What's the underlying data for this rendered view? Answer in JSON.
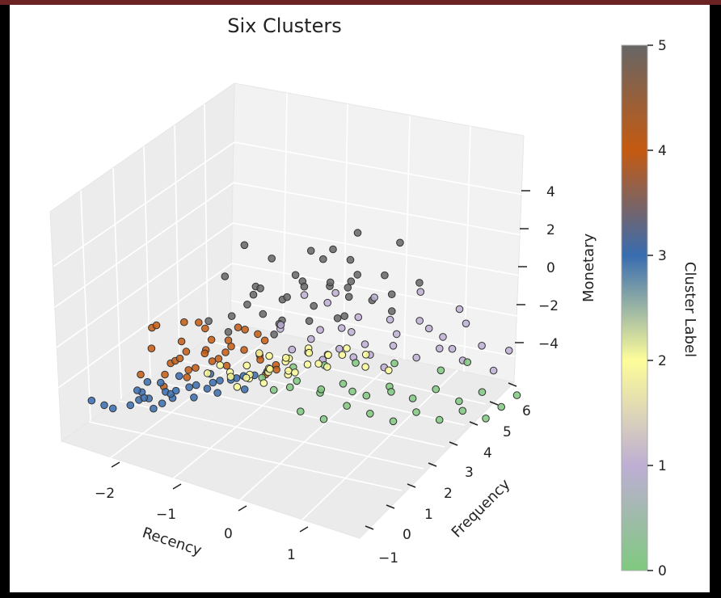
{
  "chart_data": {
    "type": "scatter",
    "projection": "3d",
    "title": "Six Clusters",
    "xlabel": "Recency",
    "ylabel": "Frequency",
    "zlabel": "Monetary",
    "x_ticks": [
      "−2",
      "−1",
      "0",
      "1"
    ],
    "y_ticks": [
      "−1",
      "0",
      "1",
      "2",
      "3",
      "4",
      "5",
      "6"
    ],
    "z_ticks": [
      "−4",
      "−2",
      "0",
      "2",
      "4"
    ],
    "xlim": [
      -2.6,
      1.6
    ],
    "ylim": [
      -1.3,
      6.6
    ],
    "zlim": [
      -5.2,
      5.6
    ],
    "grid": true,
    "colorbar": {
      "label": "Cluster Label",
      "ticks": [
        "0",
        "1",
        "2",
        "3",
        "4",
        "5"
      ],
      "range": [
        0,
        5
      ],
      "colors": [
        "#7fc97f",
        "#beaed4",
        "#fdfd99",
        "#386cb0",
        "#c55a11",
        "#666666"
      ]
    },
    "series": [
      {
        "cluster": 5,
        "color": "#666666",
        "points": [
          [
            -2.2,
            2.2,
            2.0
          ],
          [
            -2.0,
            2.6,
            2.2
          ],
          [
            -1.8,
            2.8,
            2.6
          ],
          [
            -1.6,
            3.0,
            2.0
          ],
          [
            -1.5,
            3.4,
            1.8
          ],
          [
            -1.4,
            2.6,
            2.8
          ],
          [
            -1.3,
            3.2,
            2.4
          ],
          [
            -1.2,
            3.8,
            1.6
          ],
          [
            -1.1,
            2.4,
            2.2
          ],
          [
            -1.0,
            3.0,
            2.0
          ],
          [
            -0.9,
            3.6,
            1.8
          ],
          [
            -0.8,
            3.2,
            2.6
          ],
          [
            -0.7,
            4.2,
            1.4
          ],
          [
            -0.6,
            2.8,
            2.4
          ],
          [
            -0.5,
            3.6,
            2.2
          ],
          [
            -0.4,
            4.0,
            1.8
          ],
          [
            -0.3,
            3.4,
            2.0
          ],
          [
            -0.2,
            4.4,
            1.6
          ],
          [
            -0.1,
            3.0,
            2.6
          ],
          [
            0.0,
            3.8,
            2.2
          ],
          [
            0.1,
            4.6,
            1.6
          ],
          [
            0.2,
            3.4,
            2.4
          ],
          [
            0.3,
            4.2,
            2.0
          ],
          [
            -1.6,
            2.0,
            3.2
          ],
          [
            -1.0,
            2.6,
            3.6
          ],
          [
            -0.4,
            3.0,
            3.4
          ],
          [
            0.2,
            3.6,
            3.8
          ],
          [
            -0.8,
            4.4,
            3.0
          ],
          [
            -1.3,
            2.2,
            4.4
          ],
          [
            -0.6,
            3.8,
            4.2
          ],
          [
            0.5,
            4.4,
            3.4
          ],
          [
            -1.9,
            2.4,
            1.2
          ],
          [
            -1.2,
            3.0,
            1.0
          ],
          [
            -0.5,
            3.8,
            0.8
          ],
          [
            0.1,
            4.6,
            0.8
          ],
          [
            -1.7,
            3.4,
            1.4
          ],
          [
            0.6,
            4.8,
            1.6
          ],
          [
            -0.9,
            2.0,
            1.4
          ],
          [
            -0.2,
            2.6,
            1.2
          ],
          [
            0.4,
            3.2,
            1.0
          ]
        ]
      },
      {
        "cluster": 4,
        "color": "#c55a11",
        "points": [
          [
            -2.5,
            1.0,
            0.4
          ],
          [
            -2.4,
            1.4,
            -0.2
          ],
          [
            -2.3,
            0.8,
            1.0
          ],
          [
            -2.2,
            1.6,
            0.2
          ],
          [
            -2.1,
            1.2,
            -0.6
          ],
          [
            -2.0,
            0.6,
            0.6
          ],
          [
            -1.9,
            1.8,
            0.0
          ],
          [
            -1.8,
            1.0,
            -1.0
          ],
          [
            -1.7,
            1.4,
            0.8
          ],
          [
            -1.6,
            2.0,
            -0.4
          ],
          [
            -1.5,
            0.8,
            0.2
          ],
          [
            -1.4,
            1.6,
            -1.2
          ],
          [
            -1.3,
            2.2,
            0.4
          ],
          [
            -1.2,
            1.2,
            -0.8
          ],
          [
            -1.1,
            1.8,
            0.0
          ],
          [
            -1.0,
            2.4,
            -0.4
          ],
          [
            -0.9,
            1.4,
            -1.4
          ],
          [
            -0.8,
            2.0,
            -0.6
          ],
          [
            -2.4,
            0.6,
            -1.2
          ],
          [
            -2.2,
            1.0,
            -1.8
          ],
          [
            -2.0,
            1.4,
            -1.4
          ],
          [
            -1.8,
            0.6,
            -2.0
          ],
          [
            -1.6,
            1.2,
            -1.6
          ],
          [
            -1.4,
            0.8,
            -2.2
          ],
          [
            -1.2,
            1.6,
            -1.8
          ],
          [
            -1.0,
            1.0,
            -2.2
          ],
          [
            -2.5,
            1.8,
            1.2
          ],
          [
            -2.3,
            2.2,
            0.6
          ],
          [
            -2.1,
            2.0,
            1.4
          ],
          [
            -1.9,
            2.4,
            0.8
          ],
          [
            -1.7,
            2.6,
            0.2
          ],
          [
            -1.5,
            2.8,
            -0.2
          ],
          [
            -1.3,
            2.6,
            -0.8
          ],
          [
            -1.1,
            2.8,
            -1.2
          ],
          [
            -0.9,
            2.6,
            -1.8
          ],
          [
            -0.8,
            2.2,
            -2.4
          ]
        ]
      },
      {
        "cluster": 1,
        "color": "#beaed4",
        "points": [
          [
            -0.8,
            2.6,
            0.0
          ],
          [
            -0.6,
            3.2,
            -0.4
          ],
          [
            -0.4,
            3.8,
            0.2
          ],
          [
            -0.2,
            4.2,
            -0.6
          ],
          [
            0.0,
            3.0,
            0.4
          ],
          [
            0.2,
            3.6,
            -0.2
          ],
          [
            0.4,
            4.4,
            -0.8
          ],
          [
            0.6,
            4.8,
            -0.2
          ],
          [
            0.8,
            5.2,
            -1.0
          ],
          [
            1.0,
            5.6,
            -0.4
          ],
          [
            -0.7,
            2.8,
            -1.0
          ],
          [
            -0.5,
            3.4,
            -1.4
          ],
          [
            -0.3,
            4.0,
            -1.2
          ],
          [
            -0.1,
            4.6,
            -1.6
          ],
          [
            0.1,
            3.2,
            -1.8
          ],
          [
            0.3,
            3.8,
            -2.0
          ],
          [
            0.5,
            4.2,
            -1.6
          ],
          [
            0.7,
            4.6,
            -2.2
          ],
          [
            0.9,
            5.0,
            -1.8
          ],
          [
            1.1,
            5.4,
            -2.4
          ],
          [
            1.2,
            5.8,
            -1.6
          ],
          [
            1.3,
            6.0,
            -2.8
          ],
          [
            -0.2,
            2.6,
            0.8
          ],
          [
            0.2,
            3.0,
            0.6
          ],
          [
            0.6,
            3.6,
            0.2
          ],
          [
            1.0,
            4.4,
            0.4
          ],
          [
            1.4,
            5.0,
            -0.6
          ],
          [
            -0.6,
            2.4,
            -0.2
          ],
          [
            0.0,
            2.8,
            -1.0
          ],
          [
            0.4,
            3.2,
            -1.4
          ],
          [
            0.8,
            3.8,
            -1.0
          ],
          [
            1.2,
            4.4,
            -1.6
          ],
          [
            1.5,
            6.2,
            -2.0
          ],
          [
            1.4,
            4.8,
            -2.6
          ]
        ]
      },
      {
        "cluster": 0,
        "color": "#7fc97f",
        "points": [
          [
            -0.6,
            2.2,
            -3.4
          ],
          [
            -0.4,
            2.6,
            -3.0
          ],
          [
            -0.2,
            3.0,
            -3.6
          ],
          [
            0.0,
            3.4,
            -3.2
          ],
          [
            0.2,
            3.8,
            -3.8
          ],
          [
            0.4,
            4.2,
            -3.4
          ],
          [
            0.6,
            4.6,
            -4.0
          ],
          [
            0.8,
            5.0,
            -3.6
          ],
          [
            1.0,
            5.4,
            -4.2
          ],
          [
            1.2,
            5.8,
            -3.8
          ],
          [
            -0.5,
            2.8,
            -4.2
          ],
          [
            -0.3,
            3.2,
            -4.6
          ],
          [
            -0.1,
            3.6,
            -4.0
          ],
          [
            0.1,
            4.0,
            -4.4
          ],
          [
            0.3,
            4.4,
            -4.8
          ],
          [
            0.5,
            4.8,
            -4.4
          ],
          [
            0.7,
            5.2,
            -4.8
          ],
          [
            0.9,
            5.6,
            -4.4
          ],
          [
            1.1,
            6.0,
            -4.8
          ],
          [
            1.3,
            6.2,
            -4.4
          ],
          [
            -0.7,
            2.0,
            -2.8
          ],
          [
            -0.3,
            2.4,
            -2.6
          ],
          [
            0.1,
            2.8,
            -2.8
          ],
          [
            0.5,
            3.2,
            -3.0
          ],
          [
            0.9,
            3.8,
            -3.2
          ],
          [
            1.3,
            4.6,
            -3.6
          ],
          [
            1.4,
            5.2,
            -3.0
          ],
          [
            1.5,
            6.4,
            -4.0
          ],
          [
            -0.2,
            2.2,
            -3.8
          ],
          [
            0.2,
            2.6,
            -4.2
          ],
          [
            0.6,
            3.0,
            -4.6
          ],
          [
            1.0,
            3.6,
            -4.8
          ]
        ]
      },
      {
        "cluster": 3,
        "color": "#386cb0",
        "points": [
          [
            -2.2,
            0.6,
            -2.6
          ],
          [
            -2.0,
            0.2,
            -2.8
          ],
          [
            -1.8,
            0.8,
            -3.0
          ],
          [
            -1.6,
            0.4,
            -3.2
          ],
          [
            -1.4,
            1.0,
            -2.8
          ],
          [
            -1.2,
            0.6,
            -3.4
          ],
          [
            -1.0,
            1.2,
            -3.0
          ],
          [
            -0.8,
            0.8,
            -3.6
          ],
          [
            -0.6,
            1.4,
            -3.2
          ],
          [
            -0.4,
            1.0,
            -3.8
          ],
          [
            -0.2,
            1.6,
            -3.4
          ],
          [
            -2.1,
            0.0,
            -3.4
          ],
          [
            -1.9,
            0.4,
            -3.6
          ],
          [
            -1.7,
            -0.2,
            -3.8
          ],
          [
            -1.5,
            0.2,
            -4.0
          ],
          [
            -1.3,
            -0.4,
            -3.6
          ],
          [
            -1.1,
            0.0,
            -4.2
          ],
          [
            -0.9,
            0.4,
            -4.4
          ],
          [
            -0.7,
            -0.2,
            -4.0
          ],
          [
            -0.5,
            0.6,
            -4.6
          ],
          [
            -0.3,
            0.2,
            -4.2
          ],
          [
            -2.3,
            0.4,
            -2.2
          ],
          [
            -1.9,
            1.0,
            -2.4
          ],
          [
            -1.5,
            1.4,
            -2.6
          ],
          [
            -1.1,
            1.6,
            -2.6
          ],
          [
            -0.7,
            1.8,
            -2.8
          ],
          [
            -2.0,
            -0.8,
            -4.0
          ],
          [
            -1.2,
            -0.6,
            -4.6
          ],
          [
            -0.6,
            -0.8,
            -4.8
          ],
          [
            -2.5,
            -0.6,
            -3.0
          ],
          [
            -1.6,
            -1.0,
            -4.8
          ],
          [
            -0.2,
            1.0,
            -4.6
          ]
        ]
      },
      {
        "cluster": 2,
        "color": "#fdfd99",
        "points": [
          [
            0.0,
            0.4,
            -4.4
          ],
          [
            0.1,
            0.8,
            -4.6
          ],
          [
            0.2,
            1.2,
            -4.2
          ],
          [
            0.3,
            0.6,
            -4.8
          ],
          [
            0.4,
            1.0,
            -4.4
          ],
          [
            0.5,
            1.4,
            -4.6
          ],
          [
            0.6,
            0.8,
            -4.2
          ],
          [
            0.7,
            1.2,
            -4.8
          ],
          [
            0.8,
            1.6,
            -4.4
          ],
          [
            0.9,
            1.0,
            -4.6
          ],
          [
            1.0,
            1.4,
            -4.2
          ],
          [
            1.1,
            1.8,
            -4.8
          ],
          [
            1.2,
            1.2,
            -4.4
          ],
          [
            1.3,
            1.6,
            -4.6
          ],
          [
            1.4,
            2.0,
            -4.2
          ],
          [
            1.5,
            2.4,
            -4.4
          ],
          [
            0.0,
            -0.2,
            -4.8
          ],
          [
            0.2,
            0.2,
            -5.0
          ],
          [
            0.4,
            0.4,
            -5.2
          ],
          [
            0.6,
            0.2,
            -5.0
          ],
          [
            0.8,
            0.6,
            -5.2
          ],
          [
            1.0,
            0.8,
            -5.0
          ],
          [
            1.2,
            0.6,
            -5.2
          ],
          [
            1.4,
            1.0,
            -5.0
          ],
          [
            -0.2,
            0.8,
            -4.6
          ],
          [
            -0.1,
            1.4,
            -4.2
          ],
          [
            0.3,
            1.8,
            -4.0
          ],
          [
            0.7,
            2.0,
            -4.0
          ],
          [
            1.1,
            2.2,
            -4.0
          ],
          [
            1.3,
            2.6,
            -4.6
          ],
          [
            1.5,
            1.4,
            -5.0
          ],
          [
            0.5,
            -0.4,
            -5.2
          ],
          [
            1.1,
            0.0,
            -5.2
          ],
          [
            1.5,
            3.0,
            -4.8
          ]
        ]
      }
    ]
  }
}
